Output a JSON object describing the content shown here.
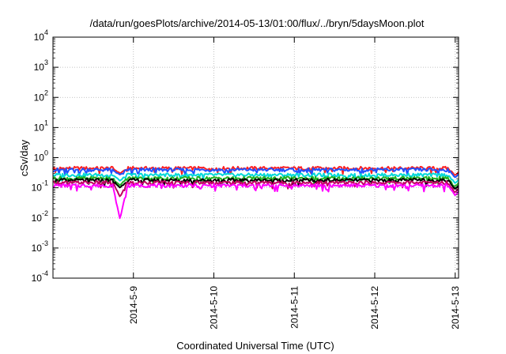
{
  "chart_data": {
    "type": "line",
    "title": "/data/run/goesPlots/archive/2014-05-13/01:00/flux/../bryn/5daysMoon.plot",
    "xlabel": "Coordinated Universal Time (UTC)",
    "ylabel": "cSv/day",
    "yscale": "log",
    "ylim": [
      0.0001,
      10000
    ],
    "xlim": [
      "2014-05-08 00:00",
      "2014-05-13 01:00"
    ],
    "y_ticks": [
      {
        "base": "10",
        "exp": "-4",
        "value": 0.0001
      },
      {
        "base": "10",
        "exp": "-3",
        "value": 0.001
      },
      {
        "base": "10",
        "exp": "-2",
        "value": 0.01
      },
      {
        "base": "10",
        "exp": "-1",
        "value": 0.1
      },
      {
        "base": "10",
        "exp": "0",
        "value": 1
      },
      {
        "base": "10",
        "exp": "1",
        "value": 10
      },
      {
        "base": "10",
        "exp": "2",
        "value": 100
      },
      {
        "base": "10",
        "exp": "3",
        "value": 1000
      },
      {
        "base": "10",
        "exp": "4",
        "value": 10000
      }
    ],
    "x_ticks": [
      {
        "label": "2014-5-9",
        "date": "2014-05-09 00:00"
      },
      {
        "label": "2014-5-10",
        "date": "2014-05-10 00:00"
      },
      {
        "label": "2014-5-11",
        "date": "2014-05-11 00:00"
      },
      {
        "label": "2014-5-12",
        "date": "2014-05-12 00:00"
      },
      {
        "label": "2014-5-13",
        "date": "2014-05-13 00:00"
      }
    ],
    "grid": true,
    "legend": "none",
    "series": [
      {
        "color": "#ff2020",
        "baseline": 0.45
      },
      {
        "color": "#2050ff",
        "baseline": 0.4
      },
      {
        "color": "#00d8d8",
        "baseline": 0.27
      },
      {
        "color": "#20b020",
        "baseline": 0.21
      },
      {
        "color": "#000000",
        "baseline": 0.18
      },
      {
        "color": "#c00060",
        "baseline": 0.15
      },
      {
        "color": "#ff00ff",
        "baseline": 0.12
      }
    ],
    "events": [
      {
        "date": "2014-05-08 20:00",
        "series_values": [
          0.3,
          0.27,
          0.17,
          0.12,
          0.1,
          0.05,
          0.009
        ]
      },
      {
        "date": "2014-05-13 00:00",
        "series_values": [
          0.26,
          0.22,
          0.14,
          0.11,
          0.09,
          0.07,
          0.055
        ]
      }
    ]
  }
}
